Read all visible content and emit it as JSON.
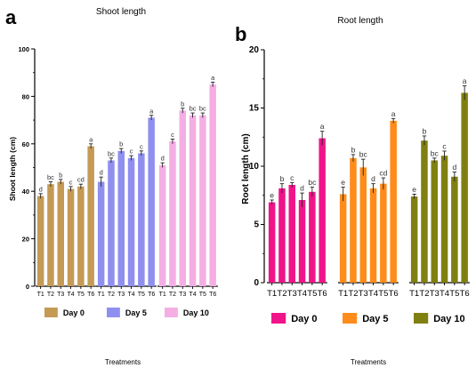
{
  "figure": {
    "panel_a_letter": "a",
    "panel_b_letter": "b"
  },
  "chart_data": [
    {
      "type": "bar",
      "panel": "a",
      "title": "Shoot length",
      "ylabel": "Shoot length (cm)",
      "xlabel": "Treatments",
      "ylim": [
        0,
        100
      ],
      "yticks": [
        0,
        20,
        40,
        60,
        80,
        100
      ],
      "categories": [
        "T1",
        "T2",
        "T3",
        "T4",
        "T5",
        "T6"
      ],
      "legend_position": "bottom",
      "series": [
        {
          "name": "Day 0",
          "color": "#c49a55",
          "values": [
            38,
            43,
            44,
            41,
            42,
            59
          ],
          "errors": [
            1,
            1,
            1,
            1,
            1,
            1
          ],
          "letters": [
            "d",
            "bc",
            "b",
            "c",
            "cd",
            "a"
          ]
        },
        {
          "name": "Day 5",
          "color": "#8f8ff0",
          "values": [
            44,
            53,
            57,
            54,
            56,
            71
          ],
          "errors": [
            2,
            1,
            1,
            1,
            1,
            1
          ],
          "letters": [
            "d",
            "bc",
            "b",
            "c",
            "c",
            "a"
          ]
        },
        {
          "name": "Day 10",
          "color": "#f4aee4",
          "values": [
            51,
            61,
            74,
            72,
            72,
            85
          ],
          "errors": [
            1,
            1,
            1,
            1,
            1,
            1
          ],
          "letters": [
            "d",
            "c",
            "b",
            "bc",
            "bc",
            "a"
          ]
        }
      ]
    },
    {
      "type": "bar",
      "panel": "b",
      "title": "Root length",
      "ylabel": "Root length (cm)",
      "xlabel": "Treatments",
      "ylim": [
        0,
        20
      ],
      "yticks": [
        0,
        5,
        10,
        15,
        20
      ],
      "categories": [
        "T1",
        "T2",
        "T3",
        "T4",
        "T5",
        "T6"
      ],
      "legend_position": "bottom",
      "series": [
        {
          "name": "Day 0",
          "color": "#f0148a",
          "values": [
            6.9,
            8.1,
            8.4,
            7.1,
            7.8,
            12.4
          ],
          "errors": [
            0.2,
            0.4,
            0.2,
            0.6,
            0.4,
            0.6
          ],
          "letters": [
            "e",
            "b",
            "c",
            "d",
            "bc",
            "a"
          ]
        },
        {
          "name": "Day 5",
          "color": "#ff8c1a",
          "values": [
            7.6,
            10.7,
            9.9,
            8.1,
            8.5,
            13.9
          ],
          "errors": [
            0.6,
            0.3,
            0.7,
            0.4,
            0.5,
            0.2
          ],
          "letters": [
            "e",
            "b",
            "bc",
            "d",
            "cd",
            "a"
          ]
        },
        {
          "name": "Day 10",
          "color": "#808010",
          "values": [
            7.4,
            12.2,
            10.5,
            10.9,
            9.1,
            16.3
          ],
          "errors": [
            0.2,
            0.4,
            0.2,
            0.4,
            0.4,
            0.6
          ],
          "letters": [
            "e",
            "b",
            "bc",
            "c",
            "d",
            "a"
          ]
        }
      ]
    }
  ]
}
